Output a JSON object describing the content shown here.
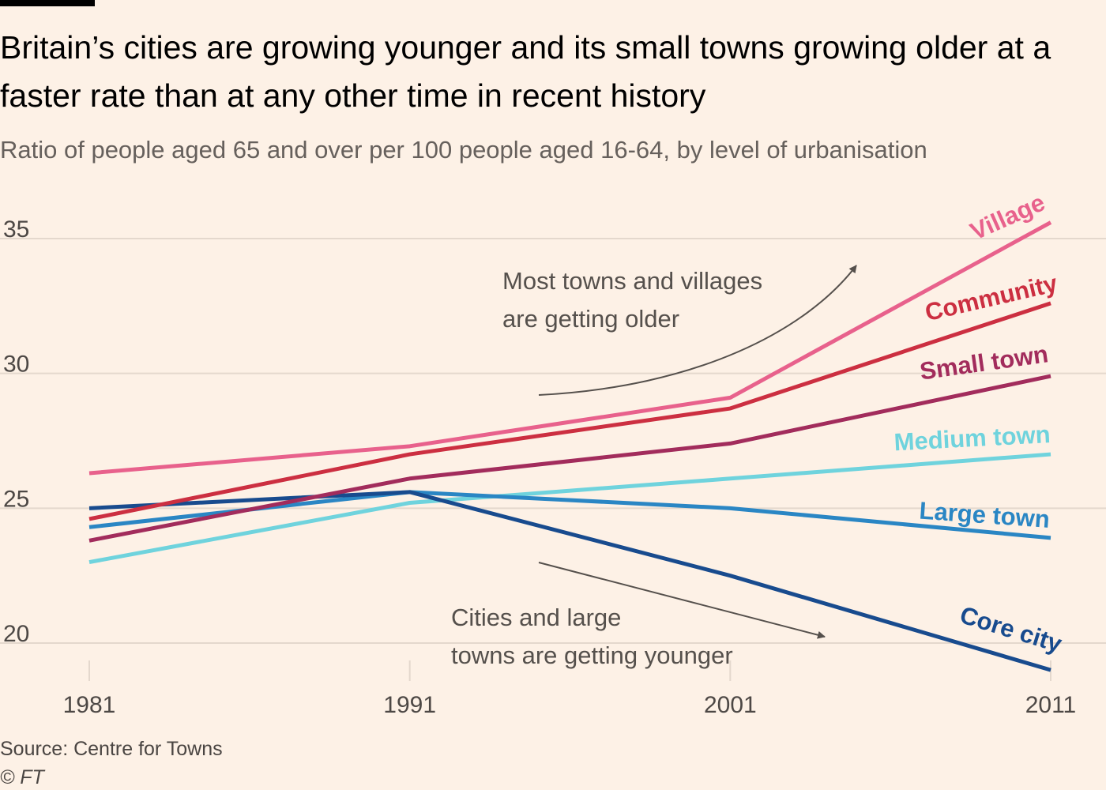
{
  "header": {
    "title": "Britain’s cities are growing younger and its small towns growing older at a faster rate than at any other time in recent history",
    "subtitle": "Ratio of people aged 65 and over per 100 people aged 16-64, by level of urbanisation"
  },
  "footer": {
    "source": "Source: Centre for Towns",
    "credit": "© FT"
  },
  "annotations": {
    "older_line1": "Most towns and villages",
    "older_line2": "are getting older",
    "younger_line1": "Cities and large",
    "younger_line2": "towns are getting younger"
  },
  "chart_data": {
    "type": "line",
    "title": "Britain’s cities are growing younger and its small towns growing older at a faster rate than at any other time in recent history",
    "subtitle": "Ratio of people aged 65 and over per 100 people aged 16-64, by level of urbanisation",
    "xlabel": "",
    "ylabel": "",
    "x": [
      1981,
      1991,
      2001,
      2011
    ],
    "x_tick_labels": [
      "1981",
      "1991",
      "2001",
      "2011"
    ],
    "y_ticks": [
      20,
      25,
      30,
      35
    ],
    "y_tick_labels": [
      "20",
      "25",
      "30",
      "35"
    ],
    "ylim": [
      19,
      36
    ],
    "grid": "horizontal",
    "legend": "direct labels at line ends",
    "series": [
      {
        "name": "Village",
        "color": "#e8618c",
        "values": [
          26.3,
          27.3,
          29.1,
          35.6
        ]
      },
      {
        "name": "Community",
        "color": "#cc2f41",
        "values": [
          24.6,
          27.0,
          28.7,
          32.6
        ]
      },
      {
        "name": "Small town",
        "color": "#a22c5c",
        "values": [
          23.8,
          26.1,
          27.4,
          29.9
        ]
      },
      {
        "name": "Medium town",
        "color": "#6fd3dd",
        "values": [
          23.0,
          25.2,
          26.1,
          27.0
        ]
      },
      {
        "name": "Large town",
        "color": "#2a86c4",
        "values": [
          24.3,
          25.6,
          25.0,
          23.9
        ]
      },
      {
        "name": "Core city",
        "color": "#184b8e",
        "values": [
          25.0,
          25.6,
          22.5,
          19.0
        ]
      }
    ]
  },
  "colors": {
    "background": "#fdf1e6",
    "grid": "#e4d8cd",
    "annotation": "#55504c"
  }
}
